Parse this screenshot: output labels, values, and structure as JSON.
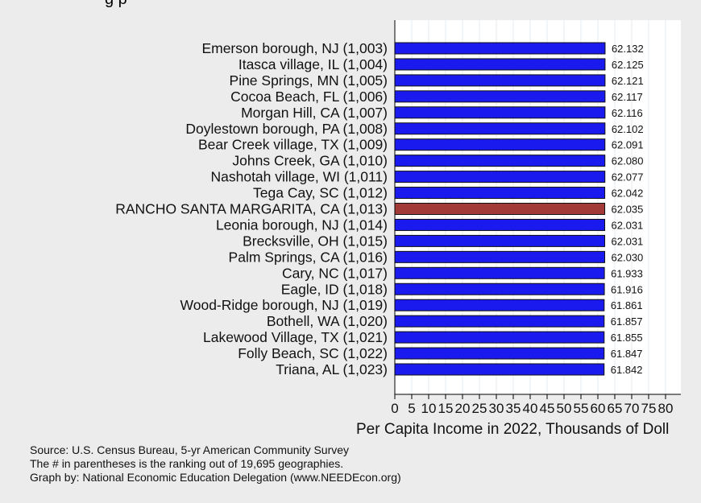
{
  "header": {
    "title_fragment": "g       p"
  },
  "chart_data": {
    "type": "bar",
    "orientation": "horizontal",
    "categories": [
      "Emerson borough, NJ (1,003)",
      "Itasca village, IL (1,004)",
      "Pine Springs, MN (1,005)",
      "Cocoa Beach, FL (1,006)",
      "Morgan Hill, CA (1,007)",
      "Doylestown borough, PA (1,008)",
      "Bear Creek village, TX (1,009)",
      "Johns Creek, GA (1,010)",
      "Nashotah village, WI (1,011)",
      "Tega Cay, SC (1,012)",
      "RANCHO SANTA MARGARITA, CA (1,013)",
      "Leonia borough, NJ (1,014)",
      "Brecksville, OH (1,015)",
      "Palm Springs, CA (1,016)",
      "Cary, NC (1,017)",
      "Eagle, ID (1,018)",
      "Wood-Ridge borough, NJ (1,019)",
      "Bothell, WA (1,020)",
      "Lakewood Village, TX (1,021)",
      "Folly Beach, SC (1,022)",
      "Triana, AL (1,023)"
    ],
    "values": [
      62.132,
      62.125,
      62.121,
      62.117,
      62.116,
      62.102,
      62.091,
      62.08,
      62.077,
      62.042,
      62.035,
      62.031,
      62.031,
      62.03,
      61.933,
      61.916,
      61.861,
      61.857,
      61.855,
      61.847,
      61.842
    ],
    "value_labels": [
      "62.132",
      "62.125",
      "62.121",
      "62.117",
      "62.116",
      "62.102",
      "62.091",
      "62.080",
      "62.077",
      "62.042",
      "62.035",
      "62.031",
      "62.031",
      "62.030",
      "61.933",
      "61.916",
      "61.861",
      "61.857",
      "61.855",
      "61.847",
      "61.842"
    ],
    "highlight_index": 10,
    "colors": {
      "bar": "#1a1aee",
      "highlight": "#a23a38",
      "background": "#ececed",
      "plot_background": "#ffffff"
    },
    "xlabel": "Per Capita Income in 2022, Thousands of Doll",
    "xlim": [
      0,
      83
    ],
    "xticks": [
      0,
      5,
      10,
      15,
      20,
      25,
      30,
      35,
      40,
      45,
      50,
      55,
      60,
      65,
      70,
      75,
      80
    ],
    "grid": true
  },
  "footnotes": {
    "source": "Source: U.S. Census Bureau, 5-yr American Community Survey",
    "ranking_note": "The # in parentheses is the ranking out of 19,695 geographies.",
    "credit": "Graph by: National Economic Education Delegation (www.NEEDEcon.org)"
  }
}
